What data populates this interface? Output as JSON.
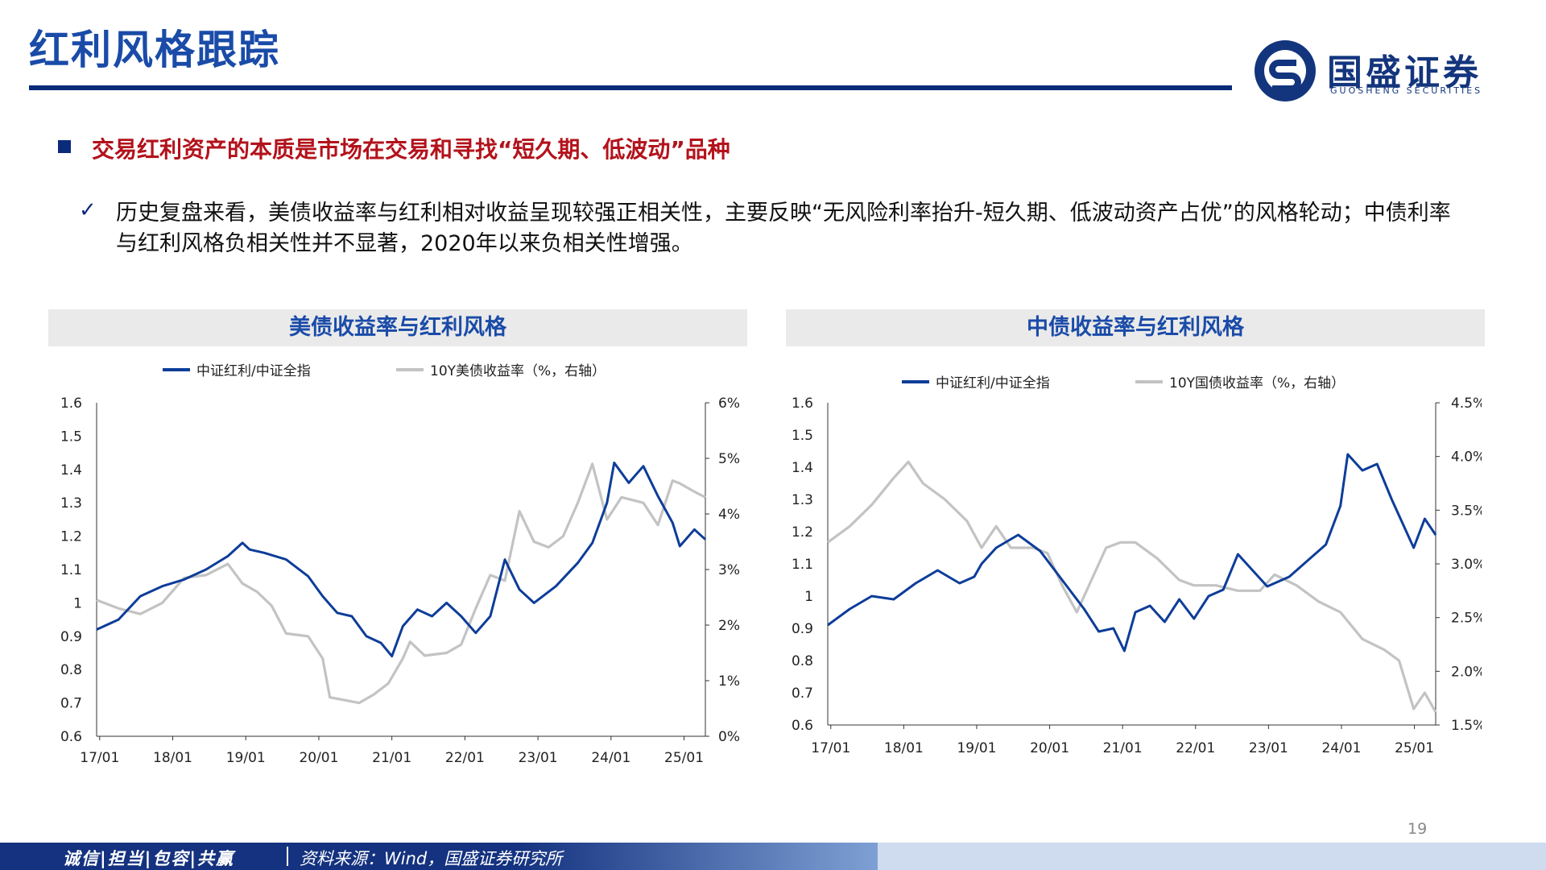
{
  "page": {
    "title": "红利风格跟踪",
    "headline": "交易红利资产的本质是市场在交易和寻找“短久期、低波动”品种",
    "paragraph": "历史复盘来看，美债收益率与红利相对收益呈现较强正相关性，主要反映“无风险利率抬升-短久期、低波动资产占优”的风格轮动；中债利率与红利风格负相关性并不显著，2020年以来负相关性增强。",
    "page_number": "19",
    "footer_motto": "诚信|担当|包容|共赢",
    "footer_source": "资料来源：Wind，国盛证券研究所",
    "logo_cn": "国盛证券",
    "logo_en": "GUOSHENG SECURITIES",
    "colors": {
      "brand": "#1a4ba8",
      "navy": "#0b2a7a",
      "accent_red": "#b3121b",
      "series_main": "#0d3d99",
      "series_secondary": "#c3c3c3"
    }
  },
  "chart_data": [
    {
      "type": "line",
      "title": "美债收益率与红利风格",
      "legend": [
        "中证红利/中证全指",
        "10Y美债收益率（%，右轴）"
      ],
      "x_tick_labels": [
        "17/01",
        "18/01",
        "19/01",
        "20/01",
        "21/01",
        "22/01",
        "23/01",
        "24/01",
        "25/01"
      ],
      "left_tick_labels": [
        "1.6",
        "1.5",
        "1.4",
        "1.3",
        "1.2",
        "1.1",
        "1",
        "0.9",
        "0.8",
        "0.7",
        "0.6"
      ],
      "right_tick_labels": [
        "6%",
        "5%",
        "4%",
        "3%",
        "2%",
        "1%",
        "0%"
      ],
      "ylim_left": [
        0.6,
        1.6
      ],
      "ylim_right": [
        0,
        6
      ],
      "x_range": [
        2017.0,
        2025.35
      ],
      "series": [
        {
          "name": "中证红利/中证全指",
          "axis": "left",
          "x": [
            2017.0,
            2017.3,
            2017.6,
            2017.9,
            2018.2,
            2018.5,
            2018.8,
            2019.0,
            2019.1,
            2019.3,
            2019.6,
            2019.9,
            2020.1,
            2020.3,
            2020.5,
            2020.7,
            2020.9,
            2021.05,
            2021.2,
            2021.4,
            2021.6,
            2021.8,
            2022.0,
            2022.2,
            2022.4,
            2022.6,
            2022.8,
            2023.0,
            2023.3,
            2023.6,
            2023.8,
            2024.0,
            2024.1,
            2024.3,
            2024.5,
            2024.7,
            2024.9,
            2025.0,
            2025.2,
            2025.35
          ],
          "values": [
            0.92,
            0.95,
            1.02,
            1.05,
            1.07,
            1.1,
            1.14,
            1.18,
            1.16,
            1.15,
            1.13,
            1.08,
            1.02,
            0.97,
            0.96,
            0.9,
            0.88,
            0.84,
            0.93,
            0.98,
            0.96,
            1.0,
            0.96,
            0.91,
            0.96,
            1.13,
            1.04,
            1.0,
            1.05,
            1.12,
            1.18,
            1.3,
            1.42,
            1.36,
            1.41,
            1.32,
            1.24,
            1.17,
            1.22,
            1.19
          ]
        },
        {
          "name": "10Y美债收益率（%，右轴）",
          "axis": "right",
          "x": [
            2017.0,
            2017.3,
            2017.6,
            2017.9,
            2018.2,
            2018.5,
            2018.8,
            2019.0,
            2019.2,
            2019.4,
            2019.6,
            2019.9,
            2020.0,
            2020.1,
            2020.2,
            2020.4,
            2020.6,
            2020.8,
            2021.0,
            2021.2,
            2021.3,
            2021.5,
            2021.8,
            2022.0,
            2022.2,
            2022.4,
            2022.6,
            2022.8,
            2023.0,
            2023.2,
            2023.4,
            2023.6,
            2023.8,
            2024.0,
            2024.2,
            2024.5,
            2024.7,
            2024.9,
            2025.0,
            2025.2,
            2025.35
          ],
          "values": [
            2.45,
            2.3,
            2.2,
            2.4,
            2.85,
            2.9,
            3.1,
            2.75,
            2.6,
            2.35,
            1.85,
            1.8,
            1.6,
            1.4,
            0.7,
            0.65,
            0.6,
            0.75,
            0.95,
            1.4,
            1.7,
            1.45,
            1.5,
            1.65,
            2.3,
            2.9,
            2.8,
            4.05,
            3.5,
            3.4,
            3.6,
            4.2,
            4.9,
            3.9,
            4.3,
            4.2,
            3.8,
            4.6,
            4.55,
            4.4,
            4.3
          ]
        }
      ]
    },
    {
      "type": "line",
      "title": "中债收益率与红利风格",
      "legend": [
        "中证红利/中证全指",
        "10Y国债收益率（%，右轴）"
      ],
      "x_tick_labels": [
        "17/01",
        "18/01",
        "19/01",
        "20/01",
        "21/01",
        "22/01",
        "23/01",
        "24/01",
        "25/01"
      ],
      "left_tick_labels": [
        "1.6",
        "1.5",
        "1.4",
        "1.3",
        "1.2",
        "1.1",
        "1",
        "0.9",
        "0.8",
        "0.7",
        "0.6"
      ],
      "right_tick_labels": [
        "4.5%",
        "4.0%",
        "3.5%",
        "3.0%",
        "2.5%",
        "2.0%",
        "1.5%"
      ],
      "ylim_left": [
        0.6,
        1.6
      ],
      "ylim_right": [
        1.5,
        4.5
      ],
      "x_range": [
        2017.0,
        2025.3
      ],
      "series": [
        {
          "name": "中证红利/中证全指",
          "axis": "left",
          "x": [
            2017.0,
            2017.3,
            2017.6,
            2017.9,
            2018.2,
            2018.5,
            2018.8,
            2019.0,
            2019.1,
            2019.3,
            2019.6,
            2019.9,
            2020.1,
            2020.3,
            2020.5,
            2020.7,
            2020.9,
            2021.05,
            2021.2,
            2021.4,
            2021.6,
            2021.8,
            2022.0,
            2022.2,
            2022.4,
            2022.6,
            2022.8,
            2023.0,
            2023.3,
            2023.6,
            2023.8,
            2024.0,
            2024.1,
            2024.3,
            2024.5,
            2024.7,
            2024.9,
            2025.0,
            2025.15,
            2025.3
          ],
          "values": [
            0.91,
            0.96,
            1.0,
            0.99,
            1.04,
            1.08,
            1.04,
            1.06,
            1.1,
            1.15,
            1.19,
            1.14,
            1.08,
            1.02,
            0.96,
            0.89,
            0.9,
            0.83,
            0.95,
            0.97,
            0.92,
            0.99,
            0.93,
            1.0,
            1.02,
            1.13,
            1.08,
            1.03,
            1.06,
            1.12,
            1.16,
            1.28,
            1.44,
            1.39,
            1.41,
            1.3,
            1.2,
            1.15,
            1.24,
            1.19
          ]
        },
        {
          "name": "10Y国债收益率（%，右轴）",
          "axis": "right",
          "x": [
            2017.0,
            2017.3,
            2017.6,
            2017.9,
            2018.1,
            2018.3,
            2018.6,
            2018.9,
            2019.1,
            2019.3,
            2019.5,
            2019.8,
            2020.0,
            2020.2,
            2020.4,
            2020.6,
            2020.8,
            2021.0,
            2021.2,
            2021.5,
            2021.8,
            2022.0,
            2022.3,
            2022.6,
            2022.9,
            2023.1,
            2023.4,
            2023.7,
            2024.0,
            2024.3,
            2024.6,
            2024.8,
            2025.0,
            2025.15,
            2025.3
          ],
          "values": [
            3.2,
            3.35,
            3.55,
            3.8,
            3.95,
            3.75,
            3.6,
            3.4,
            3.15,
            3.35,
            3.15,
            3.15,
            3.1,
            2.8,
            2.55,
            2.85,
            3.15,
            3.2,
            3.2,
            3.05,
            2.85,
            2.8,
            2.8,
            2.75,
            2.75,
            2.9,
            2.8,
            2.65,
            2.55,
            2.3,
            2.2,
            2.1,
            1.65,
            1.8,
            1.62
          ]
        }
      ]
    }
  ]
}
